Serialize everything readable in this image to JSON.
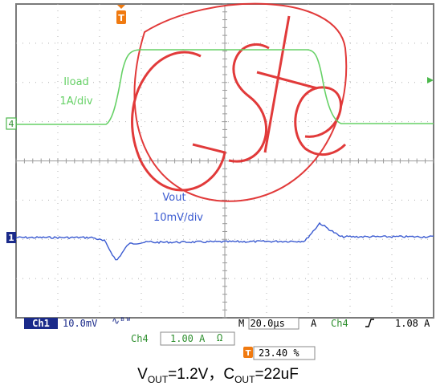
{
  "scope": {
    "grid_divisions": {
      "horizontal": 10,
      "vertical": 8
    },
    "ch4": {
      "marker": "4",
      "label_name": "Iload",
      "label_scale": "1A/div",
      "color": "#66d166"
    },
    "ch1": {
      "marker": "1",
      "label_name": "Vout",
      "label_scale": "10mV/div",
      "color": "#3b5bd1"
    },
    "trigger_marker_icon": "trigger-T-icon",
    "trigger_marker_color": "#f07a10"
  },
  "status_bar": {
    "ch1_badge": "Ch1",
    "ch1_scale": "10.0mV",
    "ch1_coupling_icon": "ac-bandwidth-icon",
    "timebase": "M 20.0µs",
    "trigger_mode": "A",
    "trigger_source": "Ch4",
    "trigger_slope_icon": "rising-edge-icon",
    "trigger_level": "1.08 A",
    "ch4_badge": "Ch4",
    "ch4_scale": "1.00 A",
    "ch4_coupling": "Ω",
    "position_percent": "23.40 %"
  },
  "caption": {
    "vout_prefix": "V",
    "vout_sub": "OUT",
    "vout_value": "=1.2V，",
    "cout_prefix": "C",
    "cout_sub": "OUT",
    "cout_value": "=22uF"
  },
  "watermark": {
    "text": "GSte",
    "color": "#e03030"
  }
}
